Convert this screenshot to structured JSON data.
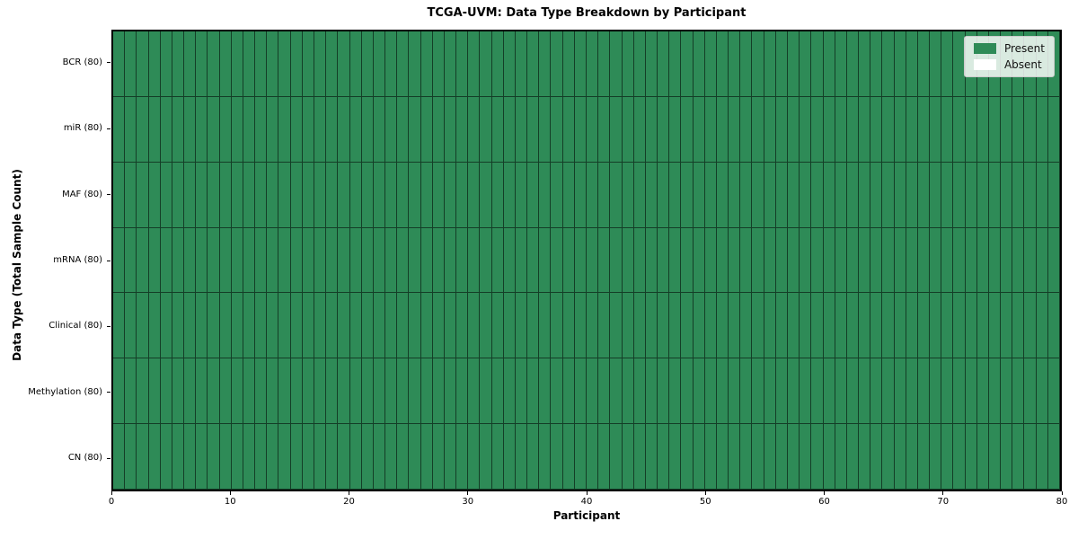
{
  "chart_data": {
    "type": "heatmap",
    "title": "TCGA-UVM: Data Type Breakdown by Participant",
    "xlabel": "Participant",
    "ylabel": "Data Type (Total Sample Count)",
    "x_range": [
      0,
      80
    ],
    "x_ticks": [
      0,
      10,
      20,
      30,
      40,
      50,
      60,
      70,
      80
    ],
    "n_participants": 80,
    "categories": [
      "BCR (80)",
      "miR (80)",
      "MAF (80)",
      "mRNA (80)",
      "Clinical (80)",
      "Methylation (80)",
      "CN (80)"
    ],
    "series": [
      {
        "name": "BCR (80)",
        "total_samples": 80,
        "present_cells": 80,
        "absent_cells": 0
      },
      {
        "name": "miR (80)",
        "total_samples": 80,
        "present_cells": 80,
        "absent_cells": 0
      },
      {
        "name": "MAF (80)",
        "total_samples": 80,
        "present_cells": 80,
        "absent_cells": 0
      },
      {
        "name": "mRNA (80)",
        "total_samples": 80,
        "present_cells": 80,
        "absent_cells": 0
      },
      {
        "name": "Clinical (80)",
        "total_samples": 80,
        "present_cells": 80,
        "absent_cells": 0
      },
      {
        "name": "Methylation (80)",
        "total_samples": 80,
        "present_cells": 80,
        "absent_cells": 0
      },
      {
        "name": "CN (80)",
        "total_samples": 80,
        "present_cells": 80,
        "absent_cells": 0
      }
    ],
    "cell_states": [
      "Present",
      "Absent"
    ],
    "colors": {
      "present": "#2e8b57",
      "absent": "#ffffff"
    },
    "legend_position": "upper right"
  },
  "legend": {
    "items": [
      {
        "label": "Present",
        "color": "#2e8b57"
      },
      {
        "label": "Absent",
        "color": "#ffffff"
      }
    ]
  }
}
